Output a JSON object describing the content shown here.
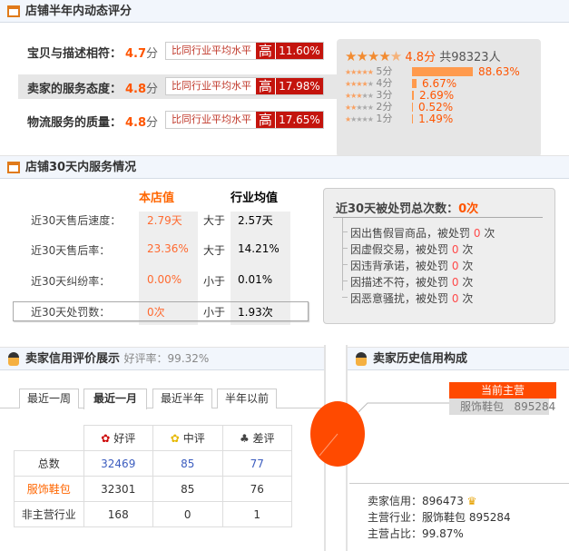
{
  "dsr": {
    "title": "店铺半年内动态评分",
    "rows": [
      {
        "label": "宝贝与描述相符：",
        "score": "4.7",
        "unit": "分",
        "compare": "比同行业平均水平",
        "level": "高",
        "pct": "11.60%"
      },
      {
        "label": "卖家的服务态度：",
        "score": "4.8",
        "unit": "分",
        "compare": "比同行业平均水平",
        "level": "高",
        "pct": "17.98%"
      },
      {
        "label": "物流服务的质量：",
        "score": "4.8",
        "unit": "分",
        "compare": "比同行业平均水平",
        "level": "高",
        "pct": "17.65%"
      }
    ],
    "summary": {
      "score": "4.8分",
      "total": "共98323人",
      "stars": 4.5
    },
    "dist": [
      {
        "label": "5分",
        "pct": "88.63%",
        "value": 88.63
      },
      {
        "label": "4分",
        "pct": "6.67%",
        "value": 6.67
      },
      {
        "label": "3分",
        "pct": "2.69%",
        "value": 2.69
      },
      {
        "label": "2分",
        "pct": "0.52%",
        "value": 0.52
      },
      {
        "label": "1分",
        "pct": "1.49%",
        "value": 1.49
      }
    ]
  },
  "service": {
    "title": "店铺30天内服务情况",
    "col_shop": "本店值",
    "col_avg": "行业均值",
    "rows": [
      {
        "label": "近30天售后速度：",
        "shop": "2.79天",
        "cmp": "大于",
        "avg": "2.57天"
      },
      {
        "label": "近30天售后率：",
        "shop": "23.36%",
        "cmp": "大于",
        "avg": "14.21%"
      },
      {
        "label": "近30天纠纷率：",
        "shop": "0.00%",
        "cmp": "小于",
        "avg": "0.01%"
      },
      {
        "label": "近30天处罚数：",
        "shop": "0次",
        "cmp": "小于",
        "avg": "1.93次"
      }
    ],
    "penalty": {
      "title": "近30天被处罚总次数：",
      "total": "0次",
      "items": [
        {
          "text": "因出售假冒商品，被处罚",
          "n": "0",
          "unit": "次"
        },
        {
          "text": "因虚假交易，被处罚",
          "n": "0",
          "unit": "次"
        },
        {
          "text": "因违背承诺，被处罚",
          "n": "0",
          "unit": "次"
        },
        {
          "text": "因描述不符，被处罚",
          "n": "0",
          "unit": "次"
        },
        {
          "text": "因恶意骚扰，被处罚",
          "n": "0",
          "unit": "次"
        }
      ]
    }
  },
  "credit": {
    "title": "卖家信用评价展示",
    "rate_label": "好评率：99.32%",
    "tabs": [
      "最近一周",
      "最近一月",
      "最近半年",
      "半年以前"
    ],
    "active_tab": 1,
    "headers": [
      "好评",
      "中评",
      "差评"
    ],
    "rows": [
      {
        "label": "总数",
        "vals": [
          "32469",
          "85",
          "77"
        ]
      },
      {
        "label": "服饰鞋包",
        "vals": [
          "32301",
          "85",
          "76"
        ]
      },
      {
        "label": "非主营行业",
        "vals": [
          "168",
          "0",
          "1"
        ]
      }
    ]
  },
  "history": {
    "title": "卖家历史信用构成",
    "callout_title": "当前主营",
    "callout_name": "服饰鞋包",
    "callout_value": "895284",
    "pie_share": 99.87,
    "lines": [
      {
        "k": "卖家信用：",
        "v": "896473"
      },
      {
        "k": "主营行业：",
        "v": "服饰鞋包 895284"
      },
      {
        "k": "主营占比：",
        "v": "99.87%"
      }
    ]
  },
  "colors": {
    "accent": "#ff5500",
    "badge": "#c4140d",
    "bar": "#ff9a4d"
  }
}
